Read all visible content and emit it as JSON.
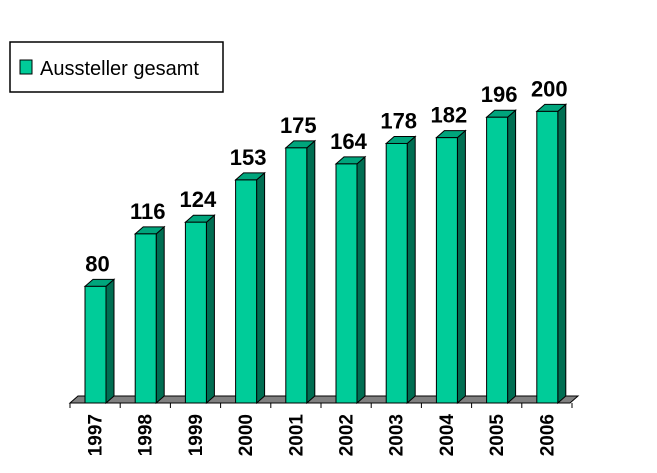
{
  "chart_data": {
    "type": "bar",
    "categories": [
      "1997",
      "1998",
      "1999",
      "2000",
      "2001",
      "2002",
      "2003",
      "2004",
      "2005",
      "2006"
    ],
    "series": [
      {
        "name": "Aussteller gesamt",
        "values": [
          80,
          116,
          124,
          153,
          175,
          164,
          178,
          182,
          196,
          200
        ]
      }
    ],
    "ylim": [
      0,
      200
    ],
    "grid": false,
    "legend": "top-left",
    "data_labels": true,
    "three_d": true,
    "colors": {
      "front": "#00cc99",
      "top": "#00a57c",
      "side": "#006e52",
      "floor": "#808080",
      "outline": "#000000"
    }
  }
}
